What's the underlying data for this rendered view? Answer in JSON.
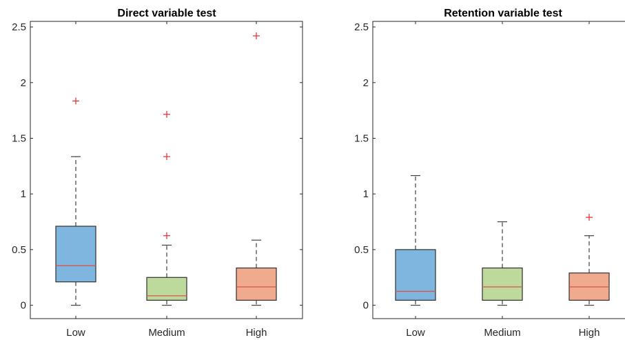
{
  "chart_data": [
    {
      "type": "box",
      "title": "Direct variable test",
      "categories": [
        "Low",
        "Medium",
        "High"
      ],
      "ylim": [
        -0.12,
        2.55
      ],
      "yticks": [
        0,
        0.5,
        1,
        1.5,
        2,
        2.5
      ],
      "ytick_labels": [
        "0",
        "0.5",
        "1",
        "1.5",
        "2",
        "2.5"
      ],
      "grid": false,
      "boxes": [
        {
          "category": "Low",
          "whisker_low": 0,
          "q1": 0.21,
          "median": 0.355,
          "q3": 0.71,
          "whisker_high": 1.335,
          "outliers": [
            1.835
          ],
          "color": "#7EB6DF"
        },
        {
          "category": "Medium",
          "whisker_low": 0,
          "q1": 0.045,
          "median": 0.085,
          "q3": 0.25,
          "whisker_high": 0.54,
          "outliers": [
            0.625,
            1.335,
            1.715
          ],
          "color": "#BDD99B"
        },
        {
          "category": "High",
          "whisker_low": 0,
          "q1": 0.045,
          "median": 0.165,
          "q3": 0.335,
          "whisker_high": 0.585,
          "outliers": [
            2.42
          ],
          "color": "#F0AA8E"
        }
      ]
    },
    {
      "type": "box",
      "title": "Retention variable test",
      "categories": [
        "Low",
        "Medium",
        "High"
      ],
      "ylim": [
        -0.12,
        2.55
      ],
      "yticks": [
        0,
        0.5,
        1,
        1.5,
        2,
        2.5
      ],
      "ytick_labels": [
        "0",
        "0.5",
        "1",
        "1.5",
        "2",
        "2.5"
      ],
      "grid": false,
      "boxes": [
        {
          "category": "Low",
          "whisker_low": 0,
          "q1": 0.045,
          "median": 0.125,
          "q3": 0.5,
          "whisker_high": 1.165,
          "outliers": [],
          "color": "#7EB6DF"
        },
        {
          "category": "Medium",
          "whisker_low": 0,
          "q1": 0.045,
          "median": 0.165,
          "q3": 0.335,
          "whisker_high": 0.75,
          "outliers": [],
          "color": "#BDD99B"
        },
        {
          "category": "High",
          "whisker_low": 0,
          "q1": 0.045,
          "median": 0.165,
          "q3": 0.29,
          "whisker_high": 0.625,
          "outliers": [
            0.79
          ],
          "color": "#F0AA8E"
        }
      ]
    }
  ],
  "colors": {
    "median_line": "#D9534F",
    "outlier": "#E8262B",
    "whisker": "#404040",
    "box_edge": "#2F2F2F",
    "axis": "#262626"
  }
}
